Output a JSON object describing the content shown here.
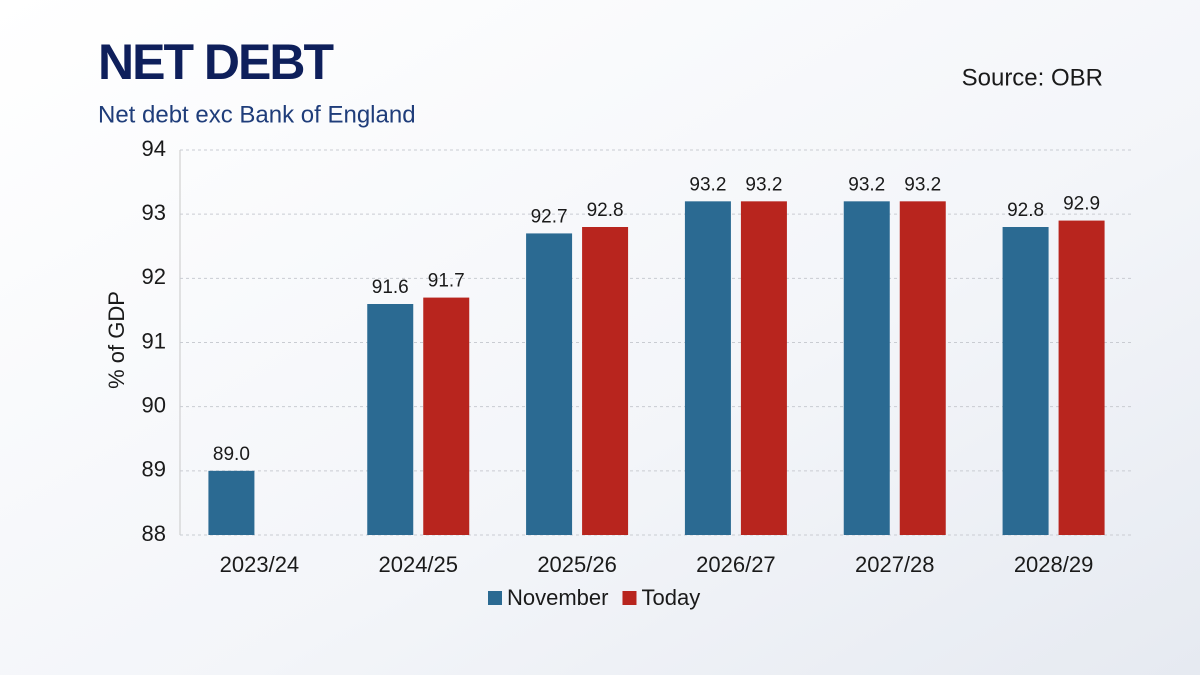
{
  "chart_data": {
    "type": "bar",
    "title": "NET DEBT",
    "subtitle": "Net debt exc Bank of England",
    "source": "Source: OBR",
    "y_label": "% of GDP",
    "categories": [
      "2023/24",
      "2024/25",
      "2025/26",
      "2026/27",
      "2027/28",
      "2028/29"
    ],
    "series": [
      {
        "name": "November",
        "color": "#2b6a92",
        "values": [
          89.0,
          91.6,
          92.7,
          93.2,
          93.2,
          92.8
        ],
        "value_labels": [
          "89.0",
          "91.6",
          "92.7",
          "93.2",
          "93.2",
          "92.8"
        ]
      },
      {
        "name": "Today",
        "color": "#b8251e",
        "values": [
          null,
          91.7,
          92.8,
          93.2,
          93.2,
          92.9
        ],
        "value_labels": [
          null,
          "91.7",
          "92.8",
          "93.2",
          "93.2",
          "92.9"
        ]
      }
    ],
    "ylim": [
      88,
      94
    ],
    "yticks": [
      88,
      89,
      90,
      91,
      92,
      93,
      94
    ],
    "grid": true
  }
}
